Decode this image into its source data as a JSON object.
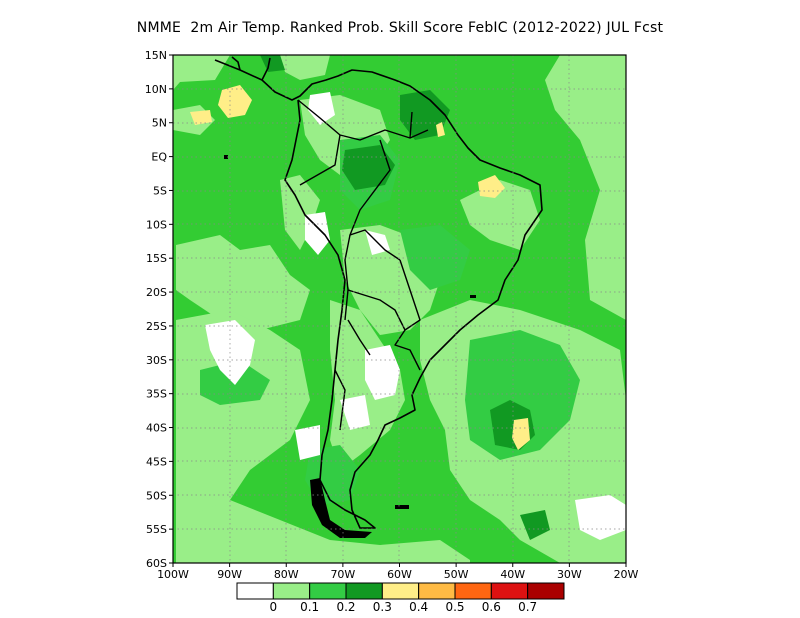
{
  "title": "NMME  2m Air Temp. Ranked Prob. Skill Score FebIC (2012-2022) JUL Fcst",
  "axes": {
    "lat_ticks": [
      "15N",
      "10N",
      "5N",
      "EQ",
      "5S",
      "10S",
      "15S",
      "20S",
      "25S",
      "30S",
      "35S",
      "40S",
      "45S",
      "50S",
      "55S",
      "60S"
    ],
    "lon_ticks": [
      "100W",
      "90W",
      "80W",
      "70W",
      "60W",
      "50W",
      "40W",
      "30W",
      "20W"
    ]
  },
  "map": {
    "region": "South America",
    "lon_range": [
      -100,
      -20
    ],
    "lat_range": [
      -60,
      15
    ],
    "grid": "dotted",
    "background_color": "#33cc33"
  },
  "colorbar": {
    "labels": [
      "0",
      "0.1",
      "0.2",
      "0.3",
      "0.4",
      "0.5",
      "0.6",
      "0.7"
    ],
    "colors": [
      "#ffffff",
      "#99ee88",
      "#33cc44",
      "#119922",
      "#ffee88",
      "#ffbb44",
      "#ff6611",
      "#dd1111",
      "#aa0000"
    ]
  }
}
